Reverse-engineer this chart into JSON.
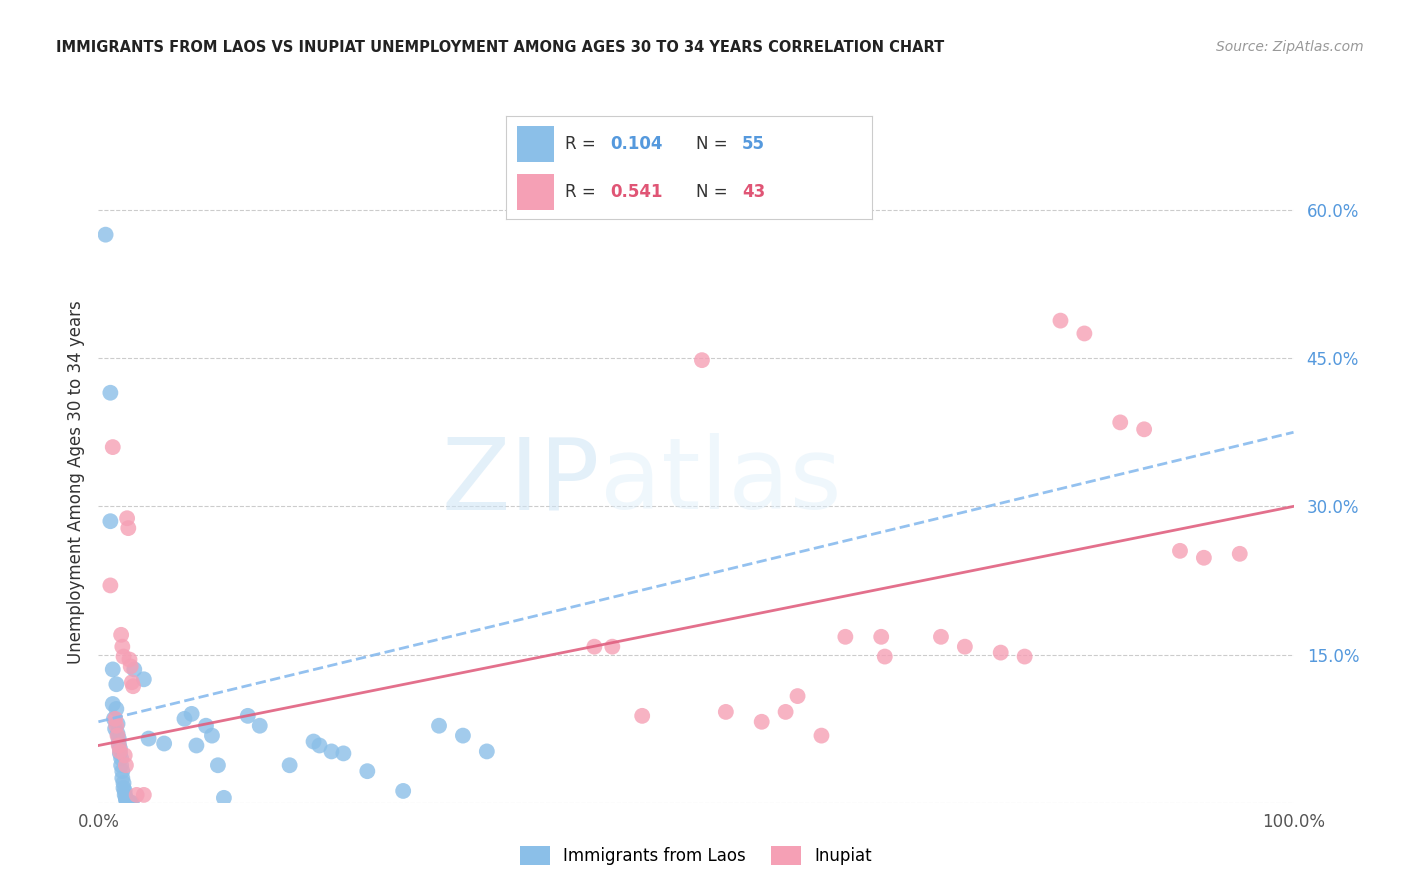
{
  "title": "IMMIGRANTS FROM LAOS VS INUPIAT UNEMPLOYMENT AMONG AGES 30 TO 34 YEARS CORRELATION CHART",
  "source": "Source: ZipAtlas.com",
  "ylabel": "Unemployment Among Ages 30 to 34 years",
  "xlim": [
    0,
    1.0
  ],
  "ylim": [
    0,
    0.65
  ],
  "ytick_positions": [
    0.0,
    0.15,
    0.3,
    0.45,
    0.6
  ],
  "ytick_labels": [
    "",
    "15.0%",
    "30.0%",
    "45.0%",
    "60.0%"
  ],
  "grid_color": "#cccccc",
  "background_color": "#ffffff",
  "watermark_zip": "ZIP",
  "watermark_atlas": "atlas",
  "color_blue": "#8bbfe8",
  "color_pink": "#f5a0b5",
  "color_blue_text": "#5599dd",
  "color_pink_text": "#e05575",
  "trendline_blue_color": "#88bbee",
  "trendline_pink_color": "#e06080",
  "scatter_blue": [
    [
      0.006,
      0.575
    ],
    [
      0.01,
      0.415
    ],
    [
      0.01,
      0.285
    ],
    [
      0.012,
      0.135
    ],
    [
      0.012,
      0.1
    ],
    [
      0.013,
      0.085
    ],
    [
      0.014,
      0.075
    ],
    [
      0.015,
      0.12
    ],
    [
      0.015,
      0.095
    ],
    [
      0.016,
      0.08
    ],
    [
      0.016,
      0.07
    ],
    [
      0.017,
      0.065
    ],
    [
      0.017,
      0.06
    ],
    [
      0.018,
      0.055
    ],
    [
      0.018,
      0.05
    ],
    [
      0.019,
      0.045
    ],
    [
      0.019,
      0.038
    ],
    [
      0.02,
      0.032
    ],
    [
      0.02,
      0.025
    ],
    [
      0.021,
      0.02
    ],
    [
      0.021,
      0.015
    ],
    [
      0.022,
      0.012
    ],
    [
      0.022,
      0.008
    ],
    [
      0.023,
      0.005
    ],
    [
      0.023,
      0.003
    ],
    [
      0.024,
      0.002
    ],
    [
      0.024,
      0.001
    ],
    [
      0.025,
      0.001
    ],
    [
      0.025,
      0.0
    ],
    [
      0.026,
      0.0
    ],
    [
      0.027,
      0.0
    ],
    [
      0.028,
      0.0
    ],
    [
      0.03,
      0.135
    ],
    [
      0.038,
      0.125
    ],
    [
      0.042,
      0.065
    ],
    [
      0.055,
      0.06
    ],
    [
      0.072,
      0.085
    ],
    [
      0.078,
      0.09
    ],
    [
      0.082,
      0.058
    ],
    [
      0.09,
      0.078
    ],
    [
      0.095,
      0.068
    ],
    [
      0.1,
      0.038
    ],
    [
      0.105,
      0.005
    ],
    [
      0.125,
      0.088
    ],
    [
      0.135,
      0.078
    ],
    [
      0.16,
      0.038
    ],
    [
      0.18,
      0.062
    ],
    [
      0.185,
      0.058
    ],
    [
      0.195,
      0.052
    ],
    [
      0.205,
      0.05
    ],
    [
      0.225,
      0.032
    ],
    [
      0.255,
      0.012
    ],
    [
      0.285,
      0.078
    ],
    [
      0.305,
      0.068
    ],
    [
      0.325,
      0.052
    ]
  ],
  "scatter_pink": [
    [
      0.01,
      0.22
    ],
    [
      0.012,
      0.36
    ],
    [
      0.014,
      0.085
    ],
    [
      0.015,
      0.078
    ],
    [
      0.016,
      0.068
    ],
    [
      0.017,
      0.058
    ],
    [
      0.018,
      0.052
    ],
    [
      0.019,
      0.17
    ],
    [
      0.02,
      0.158
    ],
    [
      0.021,
      0.148
    ],
    [
      0.022,
      0.048
    ],
    [
      0.023,
      0.038
    ],
    [
      0.024,
      0.288
    ],
    [
      0.025,
      0.278
    ],
    [
      0.026,
      0.145
    ],
    [
      0.027,
      0.138
    ],
    [
      0.028,
      0.122
    ],
    [
      0.029,
      0.118
    ],
    [
      0.032,
      0.008
    ],
    [
      0.038,
      0.008
    ],
    [
      0.415,
      0.158
    ],
    [
      0.43,
      0.158
    ],
    [
      0.455,
      0.088
    ],
    [
      0.505,
      0.448
    ],
    [
      0.525,
      0.092
    ],
    [
      0.555,
      0.082
    ],
    [
      0.575,
      0.092
    ],
    [
      0.585,
      0.108
    ],
    [
      0.605,
      0.068
    ],
    [
      0.625,
      0.168
    ],
    [
      0.655,
      0.168
    ],
    [
      0.658,
      0.148
    ],
    [
      0.705,
      0.168
    ],
    [
      0.725,
      0.158
    ],
    [
      0.755,
      0.152
    ],
    [
      0.775,
      0.148
    ],
    [
      0.805,
      0.488
    ],
    [
      0.825,
      0.475
    ],
    [
      0.855,
      0.385
    ],
    [
      0.875,
      0.378
    ],
    [
      0.905,
      0.255
    ],
    [
      0.925,
      0.248
    ],
    [
      0.955,
      0.252
    ]
  ],
  "blue_trendline": [
    [
      0.0,
      0.082
    ],
    [
      1.0,
      0.375
    ]
  ],
  "pink_trendline": [
    [
      0.0,
      0.058
    ],
    [
      1.0,
      0.3
    ]
  ]
}
